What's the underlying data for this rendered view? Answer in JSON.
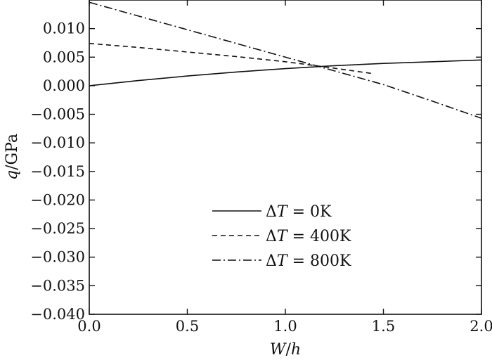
{
  "chart_data": {
    "type": "line",
    "title": "",
    "xlabel": {
      "var": "W",
      "sep": "/",
      "unit": "h"
    },
    "ylabel": {
      "var": "q",
      "unit": "/GPa"
    },
    "xlim": [
      0.0,
      2.0
    ],
    "ylim": [
      -0.04,
      0.015
    ],
    "xticks": [
      0.0,
      0.5,
      1.0,
      1.5,
      2.0
    ],
    "xtick_labels": [
      "0.0",
      "0.5",
      "1.0",
      "1.5",
      "2.0"
    ],
    "yticks": [
      0.01,
      0.005,
      0.0,
      -0.005,
      -0.01,
      -0.015,
      -0.02,
      -0.025,
      -0.03,
      -0.035,
      -0.04
    ],
    "ytick_labels": [
      "0.010",
      "0.005",
      "0.000",
      "−0.005",
      "−0.010",
      "−0.015",
      "−0.020",
      "−0.025",
      "−0.030",
      "−0.035",
      "−0.040"
    ],
    "grid": false,
    "legend_position": "lower-center",
    "series": [
      {
        "name": "ΔT = 0K",
        "prefix": "Δ",
        "var": "T",
        "suffix": " = 0K",
        "dash": "solid",
        "x": [
          0.0,
          0.25,
          0.5,
          0.75,
          1.0,
          1.25,
          1.5,
          1.75,
          2.0
        ],
        "y": [
          0.0,
          0.0009,
          0.0017,
          0.0024,
          0.003,
          0.0035,
          0.0039,
          0.0042,
          0.0045
        ]
      },
      {
        "name": "ΔT = 400K",
        "prefix": "Δ",
        "var": "T",
        "suffix": " = 400K",
        "dash": "dashed",
        "x": [
          0.0,
          0.25,
          0.5,
          0.75,
          1.0,
          1.2,
          1.45
        ],
        "y": [
          0.0074,
          0.0067,
          0.0059,
          0.0051,
          0.0042,
          0.0033,
          0.0021
        ]
      },
      {
        "name": "ΔT = 800K",
        "prefix": "Δ",
        "var": "T",
        "suffix": " = 800K",
        "dash": "dashdot",
        "x": [
          0.0,
          0.25,
          0.5,
          0.75,
          1.0,
          1.25,
          1.5,
          1.75,
          2.0
        ],
        "y": [
          0.0146,
          0.0122,
          0.0098,
          0.0074,
          0.005,
          0.0026,
          0.0002,
          -0.0027,
          -0.0057
        ]
      }
    ]
  }
}
